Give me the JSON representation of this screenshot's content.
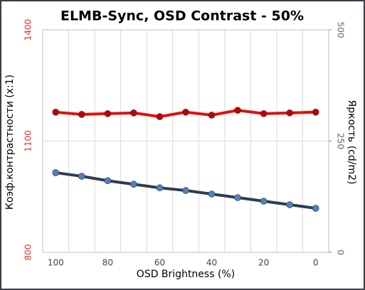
{
  "chart_data": {
    "type": "line",
    "title": "ELMB-Sync, OSD Contrast - 50%",
    "x_label": "OSD Brightness (%)",
    "y_label": "Коэф.контрастности  (x:1)",
    "y2_label": "Яркость  (cd/m2)",
    "categories": [
      "100",
      null,
      "80",
      null,
      "60",
      null,
      "40",
      null,
      "20",
      null,
      "0"
    ],
    "series": [
      {
        "color": "#e01010",
        "marker_color": "#c00000",
        "values": [
          1178,
          1172,
          1174,
          1176,
          1166,
          1178,
          1170,
          1183,
          1174,
          1176,
          1178
        ]
      },
      {
        "color": "#2e3d4f",
        "marker_color": "#4f81bd",
        "axis": "y2",
        "values": [
          179,
          171,
          161,
          153,
          145,
          139,
          131,
          123,
          115,
          107,
          99
        ]
      }
    ],
    "ylim": [
      800,
      1400
    ],
    "yticks": [
      800,
      1100,
      1400
    ],
    "y2lim": [
      0,
      500
    ],
    "y2ticks": [
      0,
      250,
      500
    ],
    "grid": true
  }
}
